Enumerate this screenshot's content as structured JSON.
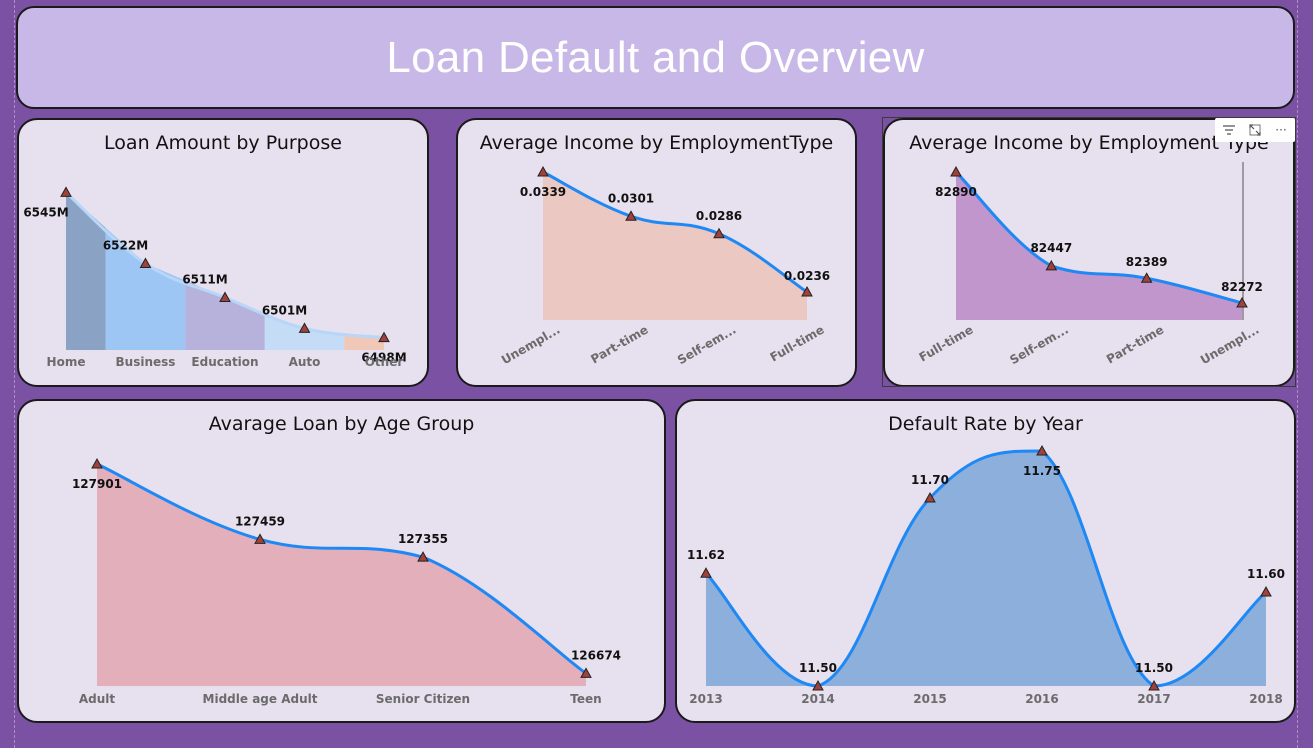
{
  "header": {
    "title": "Loan Default and Overview"
  },
  "toolbar": {
    "filter_icon": "filter-icon",
    "focus_icon": "focus-mode-icon",
    "more_icon": "more-options-icon",
    "more_glyph": "···"
  },
  "colors": {
    "background": "#7b52a3",
    "banner": "#c8b8e8",
    "card": "#e7e0ee",
    "line": "#1e88f5",
    "marker": "#a0413a",
    "purpose_fills": [
      "#8aa2c4",
      "#9ec6f4",
      "#b6b2dc",
      "#c4dcf6",
      "#f1c8b8"
    ],
    "emp1_fill": "#ecc8c2",
    "emp2_fill": "#c196cd",
    "age_fill": "#e2afba",
    "year_fill": "#8cb0db"
  },
  "chart_data": [
    {
      "type": "area",
      "title": "Loan Amount by Purpose",
      "categories": [
        "Home",
        "Business",
        "Education",
        "Auto",
        "Other"
      ],
      "values": [
        6545,
        6522,
        6511,
        6501,
        6498
      ],
      "labels": [
        "6545M",
        "6522M",
        "6511M",
        "6501M",
        "6498M"
      ],
      "unit": "M",
      "ylim": [
        6494,
        6549
      ]
    },
    {
      "type": "area",
      "title": "Average Income by EmploymentType",
      "categories": [
        "Unempl...",
        "Part-time",
        "Self-em...",
        "Full-time"
      ],
      "values": [
        0.0339,
        0.0301,
        0.0286,
        0.0236
      ],
      "labels": [
        "0.0339",
        "0.0301",
        "0.0286",
        "0.0236"
      ],
      "ylim": [
        0.0212,
        0.0339
      ]
    },
    {
      "type": "area",
      "title": "Average Income by Employment Type",
      "categories": [
        "Full-time",
        "Self-em...",
        "Part-time",
        "Unempl..."
      ],
      "values": [
        82890,
        82447,
        82389,
        82272
      ],
      "labels": [
        "82890",
        "82447",
        "82389",
        "82272"
      ],
      "ylim": [
        82192,
        82890
      ]
    },
    {
      "type": "area",
      "title": "Avarage Loan by Age Group",
      "categories": [
        "Adult",
        "Middle age Adult",
        "Senior Citizen",
        "Teen"
      ],
      "values": [
        127901,
        127459,
        127355,
        126674
      ],
      "labels": [
        "127901",
        "127459",
        "127355",
        "126674"
      ],
      "ylim": [
        126600,
        127901
      ]
    },
    {
      "type": "area",
      "title": "Default Rate by Year",
      "categories": [
        "2013",
        "2014",
        "2015",
        "2016",
        "2017",
        "2018"
      ],
      "values": [
        11.62,
        11.5,
        11.7,
        11.75,
        11.5,
        11.6
      ],
      "labels": [
        "11.62",
        "11.50",
        "11.70",
        "11.75",
        "11.50",
        "11.60"
      ],
      "ylim": [
        11.5,
        11.75
      ]
    }
  ]
}
